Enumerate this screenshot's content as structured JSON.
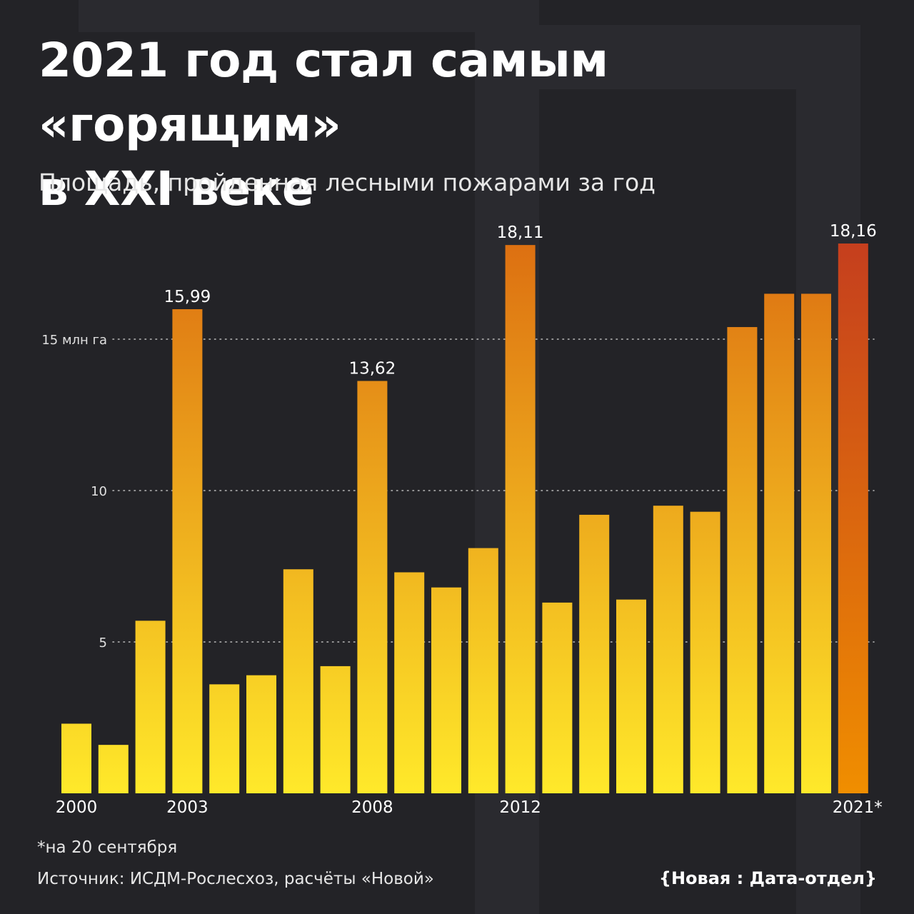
{
  "header": {
    "title_line1": "2021 год стал самым «горящим»",
    "title_line2": "в XXI веке",
    "subtitle": "Площадь, пройденная лесными пожарами за год"
  },
  "chart_data": {
    "type": "bar",
    "title": "2021 год стал самым «горящим» в XXI веке",
    "subtitle": "Площадь, пройденная лесными пожарами за год",
    "categories": [
      "2000",
      "2001",
      "2002",
      "2003",
      "2004",
      "2005",
      "2006",
      "2007",
      "2008",
      "2009",
      "2010",
      "2011",
      "2012",
      "2013",
      "2014",
      "2015",
      "2016",
      "2017",
      "2018",
      "2019",
      "2020",
      "2021*"
    ],
    "values": [
      2.3,
      1.6,
      5.7,
      15.99,
      3.6,
      3.9,
      7.4,
      4.2,
      13.62,
      7.3,
      6.8,
      8.1,
      18.11,
      6.3,
      9.2,
      6.4,
      9.5,
      9.3,
      15.4,
      16.5,
      16.5,
      18.16
    ],
    "x_tick_labels": [
      "2000",
      "",
      "",
      "2003",
      "",
      "",
      "",
      "",
      "2008",
      "",
      "",
      "",
      "2012",
      "",
      "",
      "",
      "",
      "",
      "",
      "",
      "",
      "2021*"
    ],
    "data_labels": [
      "",
      "",
      "",
      "15,99",
      "",
      "",
      "",
      "",
      "13,62",
      "",
      "",
      "",
      "18,11",
      "",
      "",
      "",
      "",
      "",
      "",
      "",
      "",
      "18,16"
    ],
    "y_ticks": [
      5,
      10,
      15
    ],
    "y_tick_labels": [
      "5",
      "10",
      "15 млн га"
    ],
    "ylim": [
      0,
      19.5
    ],
    "grid": "horizontal dotted",
    "colors": {
      "bar_low": "#FFE92A",
      "bar_high": "#DB6A10",
      "highlight_low": "#F08E00",
      "highlight_high": "#C33B1F",
      "grid": "#bbbbbb"
    }
  },
  "footer": {
    "note": "*на 20 сентября",
    "source": "Источник: ИСДМ-Рослесхоз, расчёты «Новой»",
    "brand": "{Новая : Дата-отдел}"
  },
  "colors": {
    "background": "#232327",
    "text": "#ffffff"
  }
}
